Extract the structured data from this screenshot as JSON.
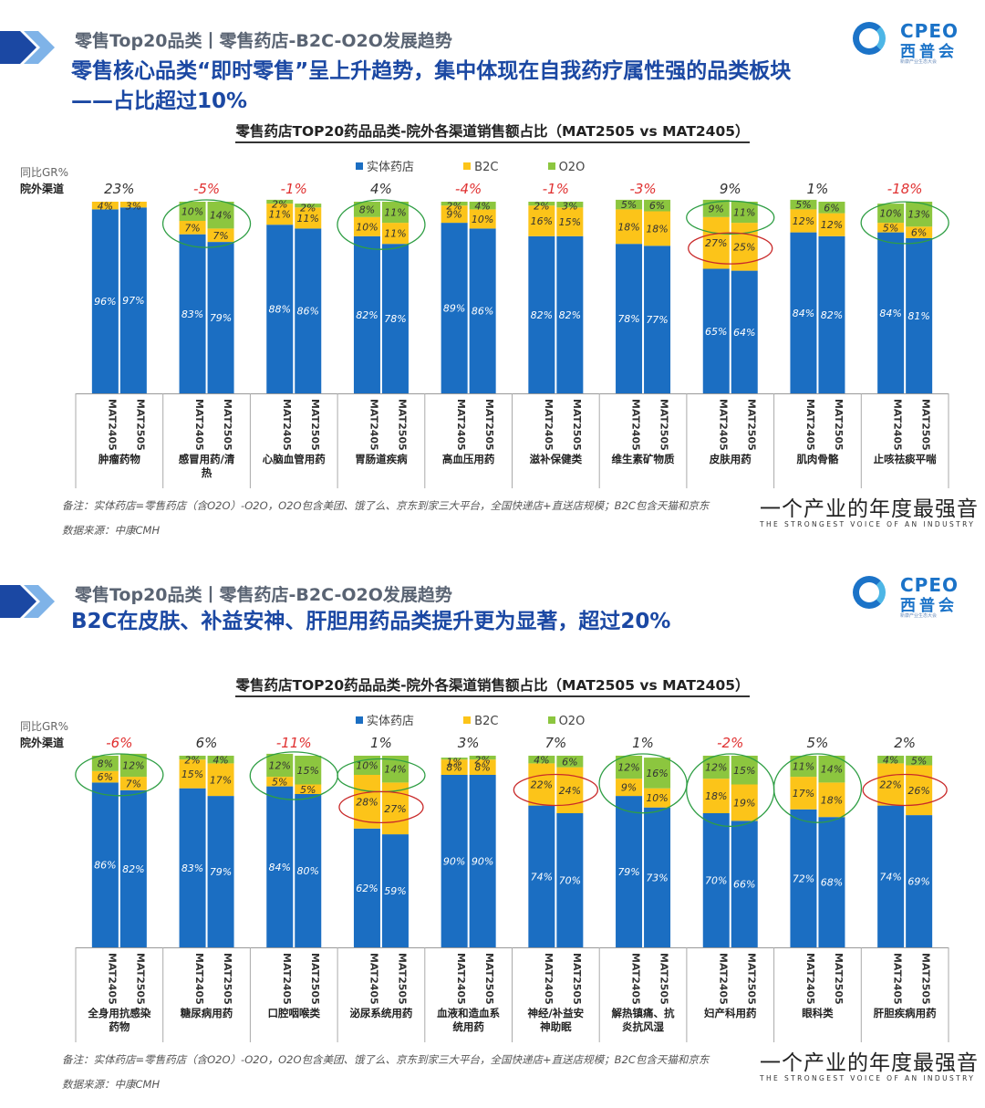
{
  "colors": {
    "store": "#1b6ec2",
    "b2c": "#fcc419",
    "o2o": "#8cc63f",
    "gr_neg": "#e03131",
    "gr_pos": "#333333",
    "headline": "#1b48a3",
    "ellipse_green": "#2f9e44",
    "ellipse_red": "#c92a2a"
  },
  "brand": {
    "logo_en": "CPEO",
    "logo_cn": "西普会",
    "logo_tag": "新康产业生态大会"
  },
  "footer": {
    "slogan": "一个产业的年度最强音",
    "slogan_en": "THE STRONGEST VOICE OF AN INDUSTRY"
  },
  "legend": {
    "store": "实体药店",
    "b2c": "B2C",
    "o2o": "O2O"
  },
  "axis_labels": {
    "gr": "同比GR%",
    "channel": "院外渠道"
  },
  "panels": [
    {
      "crumb": "零售Top20品类丨零售药店-B2C-O2O发展趋势",
      "headline_1": "零售核心品类“即时零售”呈上升趋势，集中体现在自我药疗属性强的品类板块",
      "headline_2": "——占比超过10%",
      "chart_title": "零售药店TOP20药品品类-院外各渠道销售额占比（MAT2505 vs MAT2405）",
      "note": "备注：实体药店=零售药店（含O2O）-O2O，O2O包含美团、饿了么、京东到家三大平台，全国快递店+直送店规模；B2C包含天猫和京东",
      "source": "数据来源：中康CMH"
    },
    {
      "crumb": "零售Top20品类丨零售药店-B2C-O2O发展趋势",
      "headline_1": "B2C在皮肤、补益安神、肝胆用药品类提升更为显著，超过20%",
      "headline_2": "",
      "chart_title": "零售药店TOP20药品品类-院外各渠道销售额占比（MAT2505 vs MAT2405）",
      "note": "备注：实体药店=零售药店（含O2O）-O2O，O2O包含美团、饿了么、京东到家三大平台，全国快递店+直送店规模；B2C包含天猫和京东",
      "source": "数据来源：中康CMH"
    }
  ],
  "chart_data": [
    {
      "type": "bar",
      "stacked": true,
      "title": "零售药店TOP20药品品类-院外各渠道销售额占比（MAT2505 vs MAT2405）",
      "series": [
        "实体药店",
        "B2C",
        "O2O"
      ],
      "periods": [
        "MAT2405",
        "MAT2505"
      ],
      "ylim": [
        0,
        100
      ],
      "categories": [
        {
          "name": "肿瘤药物",
          "gr": "23%",
          "bars": [
            {
              "store": 96,
              "b2c": 4,
              "o2o": 0,
              "labels": [
                "96%",
                "4%",
                ""
              ]
            },
            {
              "store": 97,
              "b2c": 3,
              "o2o": 0,
              "labels": [
                "97%",
                "3%",
                ""
              ]
            }
          ]
        },
        {
          "name": "感冒用药/清热",
          "gr": "-5%",
          "ellipse": "green",
          "bars": [
            {
              "store": 83,
              "b2c": 7,
              "o2o": 10,
              "labels": [
                "83%",
                "7%",
                "10%"
              ]
            },
            {
              "store": 79,
              "b2c": 7,
              "o2o": 14,
              "labels": [
                "79%",
                "7%",
                "14%"
              ]
            }
          ]
        },
        {
          "name": "心脑血管用药",
          "gr": "-1%",
          "bars": [
            {
              "store": 88,
              "b2c": 11,
              "o2o": 2,
              "labels": [
                "88%",
                "11%",
                "2%"
              ]
            },
            {
              "store": 86,
              "b2c": 11,
              "o2o": 2,
              "labels": [
                "86%",
                "11%",
                "2%"
              ]
            }
          ]
        },
        {
          "name": "胃肠道疾病",
          "gr": "4%",
          "ellipse": "green",
          "bars": [
            {
              "store": 82,
              "b2c": 10,
              "o2o": 8,
              "labels": [
                "82%",
                "10%",
                "8%"
              ]
            },
            {
              "store": 78,
              "b2c": 11,
              "o2o": 11,
              "labels": [
                "78%",
                "11%",
                "11%"
              ]
            }
          ]
        },
        {
          "name": "高血压用药",
          "gr": "-4%",
          "bars": [
            {
              "store": 89,
              "b2c": 9,
              "o2o": 2,
              "labels": [
                "89%",
                "9%",
                "2%"
              ]
            },
            {
              "store": 86,
              "b2c": 10,
              "o2o": 4,
              "labels": [
                "86%",
                "10%",
                "4%"
              ]
            }
          ]
        },
        {
          "name": "滋补保健类",
          "gr": "-1%",
          "bars": [
            {
              "store": 82,
              "b2c": 16,
              "o2o": 2,
              "labels": [
                "82%",
                "16%",
                "2%"
              ]
            },
            {
              "store": 82,
              "b2c": 15,
              "o2o": 3,
              "labels": [
                "82%",
                "15%",
                "3%"
              ]
            }
          ]
        },
        {
          "name": "维生素矿物质",
          "gr": "-3%",
          "bars": [
            {
              "store": 78,
              "b2c": 18,
              "o2o": 5,
              "labels": [
                "78%",
                "18%",
                "5%"
              ]
            },
            {
              "store": 77,
              "b2c": 18,
              "o2o": 6,
              "labels": [
                "77%",
                "18%",
                "6%"
              ]
            }
          ]
        },
        {
          "name": "皮肤用药",
          "gr": "9%",
          "ellipse": "both",
          "bars": [
            {
              "store": 65,
              "b2c": 27,
              "o2o": 9,
              "labels": [
                "65%",
                "27%",
                "9%"
              ]
            },
            {
              "store": 64,
              "b2c": 25,
              "o2o": 11,
              "labels": [
                "64%",
                "25%",
                "11%"
              ]
            }
          ]
        },
        {
          "name": "肌肉骨骼",
          "gr": "1%",
          "bars": [
            {
              "store": 84,
              "b2c": 12,
              "o2o": 5,
              "labels": [
                "84%",
                "12%",
                "5%"
              ]
            },
            {
              "store": 82,
              "b2c": 12,
              "o2o": 6,
              "labels": [
                "82%",
                "12%",
                "6%"
              ]
            }
          ]
        },
        {
          "name": "止咳祛痰平喘",
          "gr": "-18%",
          "ellipse": "green",
          "bars": [
            {
              "store": 84,
              "b2c": 5,
              "o2o": 10,
              "labels": [
                "84%",
                "5%",
                "10%"
              ]
            },
            {
              "store": 81,
              "b2c": 6,
              "o2o": 13,
              "labels": [
                "81%",
                "6%",
                "13%"
              ]
            }
          ]
        }
      ]
    },
    {
      "type": "bar",
      "stacked": true,
      "title": "零售药店TOP20药品品类-院外各渠道销售额占比（MAT2505 vs MAT2405）",
      "series": [
        "实体药店",
        "B2C",
        "O2O"
      ],
      "periods": [
        "MAT2405",
        "MAT2505"
      ],
      "ylim": [
        0,
        100
      ],
      "categories": [
        {
          "name": "全身用抗感染药物",
          "gr": "-6%",
          "ellipse": "green",
          "bars": [
            {
              "store": 86,
              "b2c": 6,
              "o2o": 8,
              "labels": [
                "86%",
                "6%",
                "8%"
              ]
            },
            {
              "store": 82,
              "b2c": 7,
              "o2o": 12,
              "labels": [
                "82%",
                "7%",
                "12%"
              ]
            }
          ]
        },
        {
          "name": "糖尿病用药",
          "gr": "6%",
          "bars": [
            {
              "store": 83,
              "b2c": 15,
              "o2o": 2,
              "labels": [
                "83%",
                "15%",
                "2%"
              ]
            },
            {
              "store": 79,
              "b2c": 17,
              "o2o": 4,
              "labels": [
                "79%",
                "17%",
                "4%"
              ]
            }
          ]
        },
        {
          "name": "口腔咽喉类",
          "gr": "-11%",
          "ellipse": "green",
          "bars": [
            {
              "store": 84,
              "b2c": 5,
              "o2o": 12,
              "labels": [
                "84%",
                "5%",
                "12%"
              ]
            },
            {
              "store": 80,
              "b2c": 5,
              "o2o": 15,
              "labels": [
                "80%",
                "5%",
                "15%"
              ]
            }
          ]
        },
        {
          "name": "泌尿系统用药",
          "gr": "1%",
          "ellipse": "both",
          "bars": [
            {
              "store": 62,
              "b2c": 28,
              "o2o": 10,
              "labels": [
                "62%",
                "28%",
                "10%"
              ]
            },
            {
              "store": 59,
              "b2c": 27,
              "o2o": 14,
              "labels": [
                "59%",
                "27%",
                "14%"
              ]
            }
          ]
        },
        {
          "name": "血液和造血系统用药",
          "gr": "3%",
          "bars": [
            {
              "store": 90,
              "b2c": 8,
              "o2o": 1,
              "labels": [
                "90%",
                "8%",
                "1%"
              ]
            },
            {
              "store": 90,
              "b2c": 8,
              "o2o": 2,
              "labels": [
                "90%",
                "8%",
                "2%"
              ]
            }
          ]
        },
        {
          "name": "神经/补益安神助眠",
          "gr": "7%",
          "ellipse": "red",
          "bars": [
            {
              "store": 74,
              "b2c": 22,
              "o2o": 4,
              "labels": [
                "74%",
                "22%",
                "4%"
              ]
            },
            {
              "store": 70,
              "b2c": 24,
              "o2o": 6,
              "labels": [
                "70%",
                "24%",
                "6%"
              ]
            }
          ]
        },
        {
          "name": "解热镇痛、抗炎抗风湿",
          "gr": "1%",
          "ellipse": "green",
          "bars": [
            {
              "store": 79,
              "b2c": 9,
              "o2o": 12,
              "labels": [
                "79%",
                "9%",
                "12%"
              ]
            },
            {
              "store": 73,
              "b2c": 10,
              "o2o": 16,
              "labels": [
                "73%",
                "10%",
                "16%"
              ]
            }
          ]
        },
        {
          "name": "妇产科用药",
          "gr": "-2%",
          "ellipse": "green",
          "bars": [
            {
              "store": 70,
              "b2c": 18,
              "o2o": 12,
              "labels": [
                "70%",
                "18%",
                "12%"
              ]
            },
            {
              "store": 66,
              "b2c": 19,
              "o2o": 15,
              "labels": [
                "66%",
                "19%",
                "15%"
              ]
            }
          ]
        },
        {
          "name": "眼科类",
          "gr": "5%",
          "ellipse": "green",
          "bars": [
            {
              "store": 72,
              "b2c": 17,
              "o2o": 11,
              "labels": [
                "72%",
                "17%",
                "11%"
              ]
            },
            {
              "store": 68,
              "b2c": 18,
              "o2o": 14,
              "labels": [
                "68%",
                "18%",
                "14%"
              ]
            }
          ]
        },
        {
          "name": "肝胆疾病用药",
          "gr": "2%",
          "ellipse": "red",
          "bars": [
            {
              "store": 74,
              "b2c": 22,
              "o2o": 4,
              "labels": [
                "74%",
                "22%",
                "4%"
              ]
            },
            {
              "store": 69,
              "b2c": 26,
              "o2o": 5,
              "labels": [
                "69%",
                "26%",
                "5%"
              ]
            }
          ]
        }
      ]
    }
  ]
}
